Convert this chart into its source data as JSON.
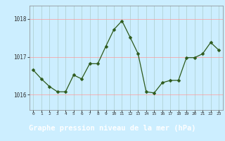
{
  "x": [
    0,
    1,
    2,
    3,
    4,
    5,
    6,
    7,
    8,
    9,
    10,
    11,
    12,
    13,
    14,
    15,
    16,
    17,
    18,
    19,
    20,
    21,
    22,
    23
  ],
  "y": [
    1016.65,
    1016.42,
    1016.22,
    1016.08,
    1016.08,
    1016.52,
    1016.42,
    1016.82,
    1016.82,
    1017.28,
    1017.72,
    1017.95,
    1017.52,
    1017.08,
    1016.08,
    1016.05,
    1016.32,
    1016.38,
    1016.38,
    1016.98,
    1016.98,
    1017.08,
    1017.38,
    1017.18
  ],
  "line_color": "#2d5a1b",
  "marker": "D",
  "marker_size": 2.5,
  "background_color": "#cceeff",
  "vgrid_color": "#aacccc",
  "hgrid_color": "#ff9999",
  "tick_color": "#333333",
  "ytick_labels": [
    "1016",
    "1017",
    "1018"
  ],
  "yticks": [
    1016,
    1017,
    1018
  ],
  "ylim": [
    1015.6,
    1018.35
  ],
  "xlim": [
    -0.5,
    23.5
  ],
  "xlabel": "Graphe pression niveau de la mer (hPa)",
  "xlabel_fontsize": 7.5,
  "xlabel_bg": "#2d6e2d",
  "figsize": [
    3.2,
    2.0
  ],
  "dpi": 100
}
